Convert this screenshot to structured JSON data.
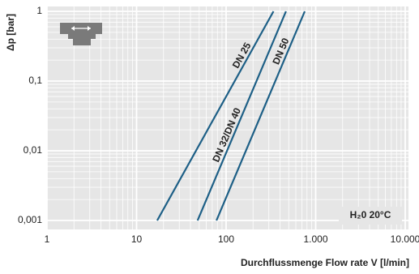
{
  "chart_data": {
    "type": "line",
    "x_label": "Durchflussmenge Flow rate V [l/min]",
    "y_label": "Δp [bar]",
    "annotation": "H₂0 20°C",
    "log_x": true,
    "log_y": true,
    "grid": true,
    "xlim": [
      1,
      10000
    ],
    "ylim": [
      0.001,
      1
    ],
    "xticks": [
      1,
      10,
      100,
      {
        "value": 1000,
        "label": "1.000"
      },
      {
        "value": 10000,
        "label": "10.000"
      }
    ],
    "yticks": [
      {
        "value": 0.001,
        "label": "0,001"
      },
      {
        "value": 0.01,
        "label": "0,01"
      },
      {
        "value": 0.1,
        "label": "0,1"
      },
      1
    ],
    "series": [
      {
        "name": "DN 25",
        "color": "#1d5f86",
        "x": [
          17,
          338
        ],
        "values": [
          0.001,
          1
        ]
      },
      {
        "name": "DN 32/DN 40",
        "color": "#1d5f86",
        "x": [
          48,
          466
        ],
        "values": [
          0.001,
          1
        ]
      },
      {
        "name": "DN 50",
        "color": "#1d5f86",
        "x": [
          78,
          755
        ],
        "values": [
          0.001,
          1
        ]
      }
    ]
  }
}
